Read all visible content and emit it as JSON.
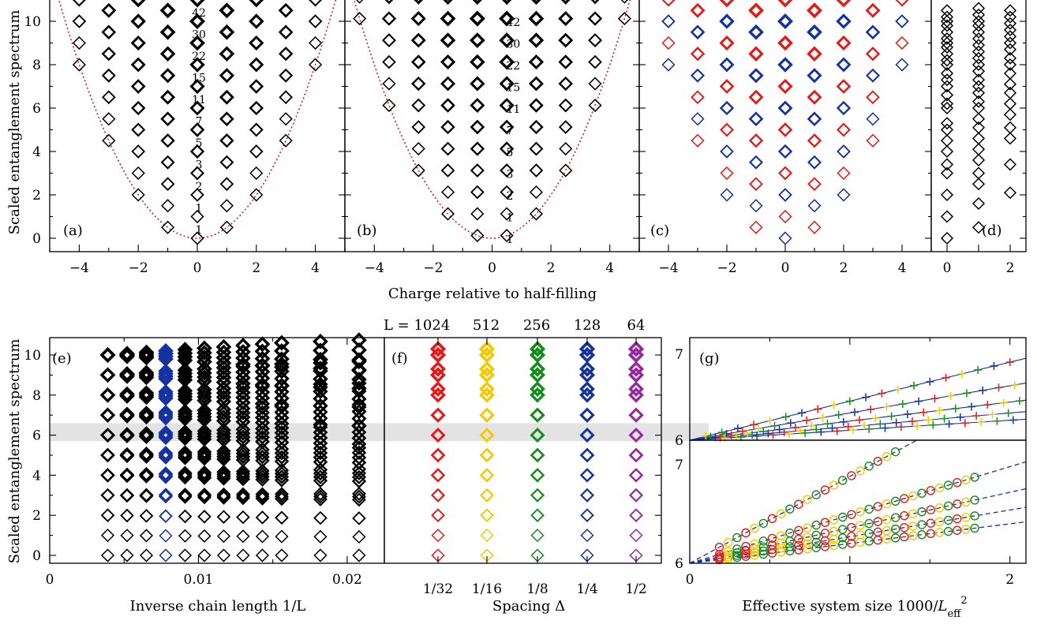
{
  "figure": {
    "top_xlabel": "Charge relative to half-filling",
    "top_ylabel": "Scaled entanglement spectrum",
    "bottom_ylabel": "Scaled entanglement spectrum",
    "panel_labels": [
      "(a)",
      "(b)",
      "(c)",
      "(d)",
      "(e)",
      "(f)",
      "(g)"
    ],
    "f_header": [
      "L = 1024",
      "512",
      "256",
      "128",
      "64"
    ]
  },
  "chart_data": [
    {
      "panel": "a",
      "type": "scatter",
      "xlim": [
        -5,
        5
      ],
      "ylim": [
        -0.4,
        11
      ],
      "xticks": [
        "−4",
        "−2",
        "0",
        "2",
        "4"
      ],
      "yticks": [
        "0",
        "2",
        "4",
        "6",
        "8",
        "10"
      ],
      "degeneracy_labels": [
        {
          "y": 0,
          "text": "1"
        },
        {
          "y": 1,
          "text": "1"
        },
        {
          "y": 2,
          "text": "2"
        },
        {
          "y": 3,
          "text": "3"
        },
        {
          "y": 4,
          "text": "5"
        },
        {
          "y": 5,
          "text": "7"
        },
        {
          "y": 6,
          "text": "11"
        },
        {
          "y": 7,
          "text": "15"
        },
        {
          "y": 8,
          "text": "22"
        },
        {
          "y": 9,
          "text": "30"
        },
        {
          "y": 10,
          "text": "42"
        }
      ],
      "parabola": "y = x^2/2",
      "charges": [
        -4,
        -3,
        -2,
        -1,
        0,
        1,
        2,
        3,
        4
      ],
      "color": "#000000"
    },
    {
      "panel": "b",
      "type": "scatter",
      "xlim": [
        -5,
        5
      ],
      "ylim": [
        -0.4,
        11
      ],
      "xticks": [
        "−4",
        "−2",
        "0",
        "2",
        "4"
      ],
      "degeneracy_labels": [
        {
          "y": 0,
          "text": "1"
        },
        {
          "y": 1,
          "text": "1"
        },
        {
          "y": 2,
          "text": "2"
        },
        {
          "y": 3,
          "text": "3"
        },
        {
          "y": 4,
          "text": "5"
        },
        {
          "y": 5,
          "text": "7"
        },
        {
          "y": 6,
          "text": "11"
        },
        {
          "y": 7,
          "text": "15"
        },
        {
          "y": 8,
          "text": "22"
        },
        {
          "y": 9,
          "text": "30"
        },
        {
          "y": 10,
          "text": "42"
        }
      ],
      "parabola": "y = x^2/2",
      "charges": [
        -4.5,
        -3.5,
        -2.5,
        -1.5,
        -0.5,
        0.5,
        1.5,
        2.5,
        3.5,
        4.5
      ],
      "color": "#000000"
    },
    {
      "panel": "c",
      "type": "scatter",
      "xlim": [
        -5,
        5
      ],
      "ylim": [
        -0.4,
        11
      ],
      "xticks": [
        "−4",
        "−2",
        "0",
        "2",
        "4"
      ],
      "charges": [
        -4,
        -3,
        -2,
        -1,
        0,
        1,
        2,
        3,
        4
      ],
      "colors": {
        "even": "#1432a0",
        "odd": "#e61919"
      }
    },
    {
      "panel": "d",
      "type": "scatter",
      "xlim": [
        -0.5,
        2.5
      ],
      "ylim": [
        -0.4,
        11
      ],
      "xticks": [
        "0",
        "2"
      ],
      "charges": [
        0,
        1,
        2
      ],
      "color": "#000000"
    },
    {
      "panel": "e",
      "type": "scatter",
      "xlim": [
        0,
        0.0225
      ],
      "ylim": [
        -0.4,
        11
      ],
      "xlabel": "Inverse chain length 1/L",
      "xticks": [
        "0",
        "0.01",
        "0.02"
      ],
      "yticks": [
        "0",
        "2",
        "4",
        "6",
        "8",
        "10"
      ],
      "x": [
        0.0039,
        0.0052,
        0.0065,
        0.0078,
        0.0091,
        0.0104,
        0.0117,
        0.013,
        0.0143,
        0.0156,
        0.0182,
        0.0208
      ],
      "highlight_band": [
        5.7,
        6.6
      ],
      "highlight_color": "#1432a0"
    },
    {
      "panel": "f",
      "type": "scatter",
      "xlabel": "Spacing Δ",
      "xticks": [
        "1/32",
        "1/16",
        "1/8",
        "1/4",
        "1/2"
      ],
      "series": [
        {
          "name": "L = 1024",
          "color": "#e61919"
        },
        {
          "name": "512",
          "color": "#f5c800"
        },
        {
          "name": "256",
          "color": "#148c1e"
        },
        {
          "name": "128",
          "color": "#1432a0"
        },
        {
          "name": "64",
          "color": "#9628a0"
        }
      ],
      "highlight_band": [
        5.7,
        6.6
      ]
    },
    {
      "panel": "g",
      "type": "line",
      "xlabel": "Effective system size 1000/L_eff^2",
      "xlim": [
        0,
        2.1
      ],
      "xticks": [
        "0",
        "1",
        "2"
      ],
      "top": {
        "ylim": [
          6,
          7
        ],
        "yticks": [
          "6",
          "7"
        ],
        "slopes": [
          0.43,
          0.3,
          0.21,
          0.15,
          0.11
        ]
      },
      "bottom": {
        "ylim": [
          6,
          7.25
        ],
        "yticks": [
          "6",
          "7"
        ],
        "slopes": [
          0.88,
          0.49,
          0.36,
          0.27,
          0.2
        ]
      },
      "colors": [
        "#e61919",
        "#f5c800",
        "#148c1e",
        "#1432a0"
      ]
    }
  ]
}
